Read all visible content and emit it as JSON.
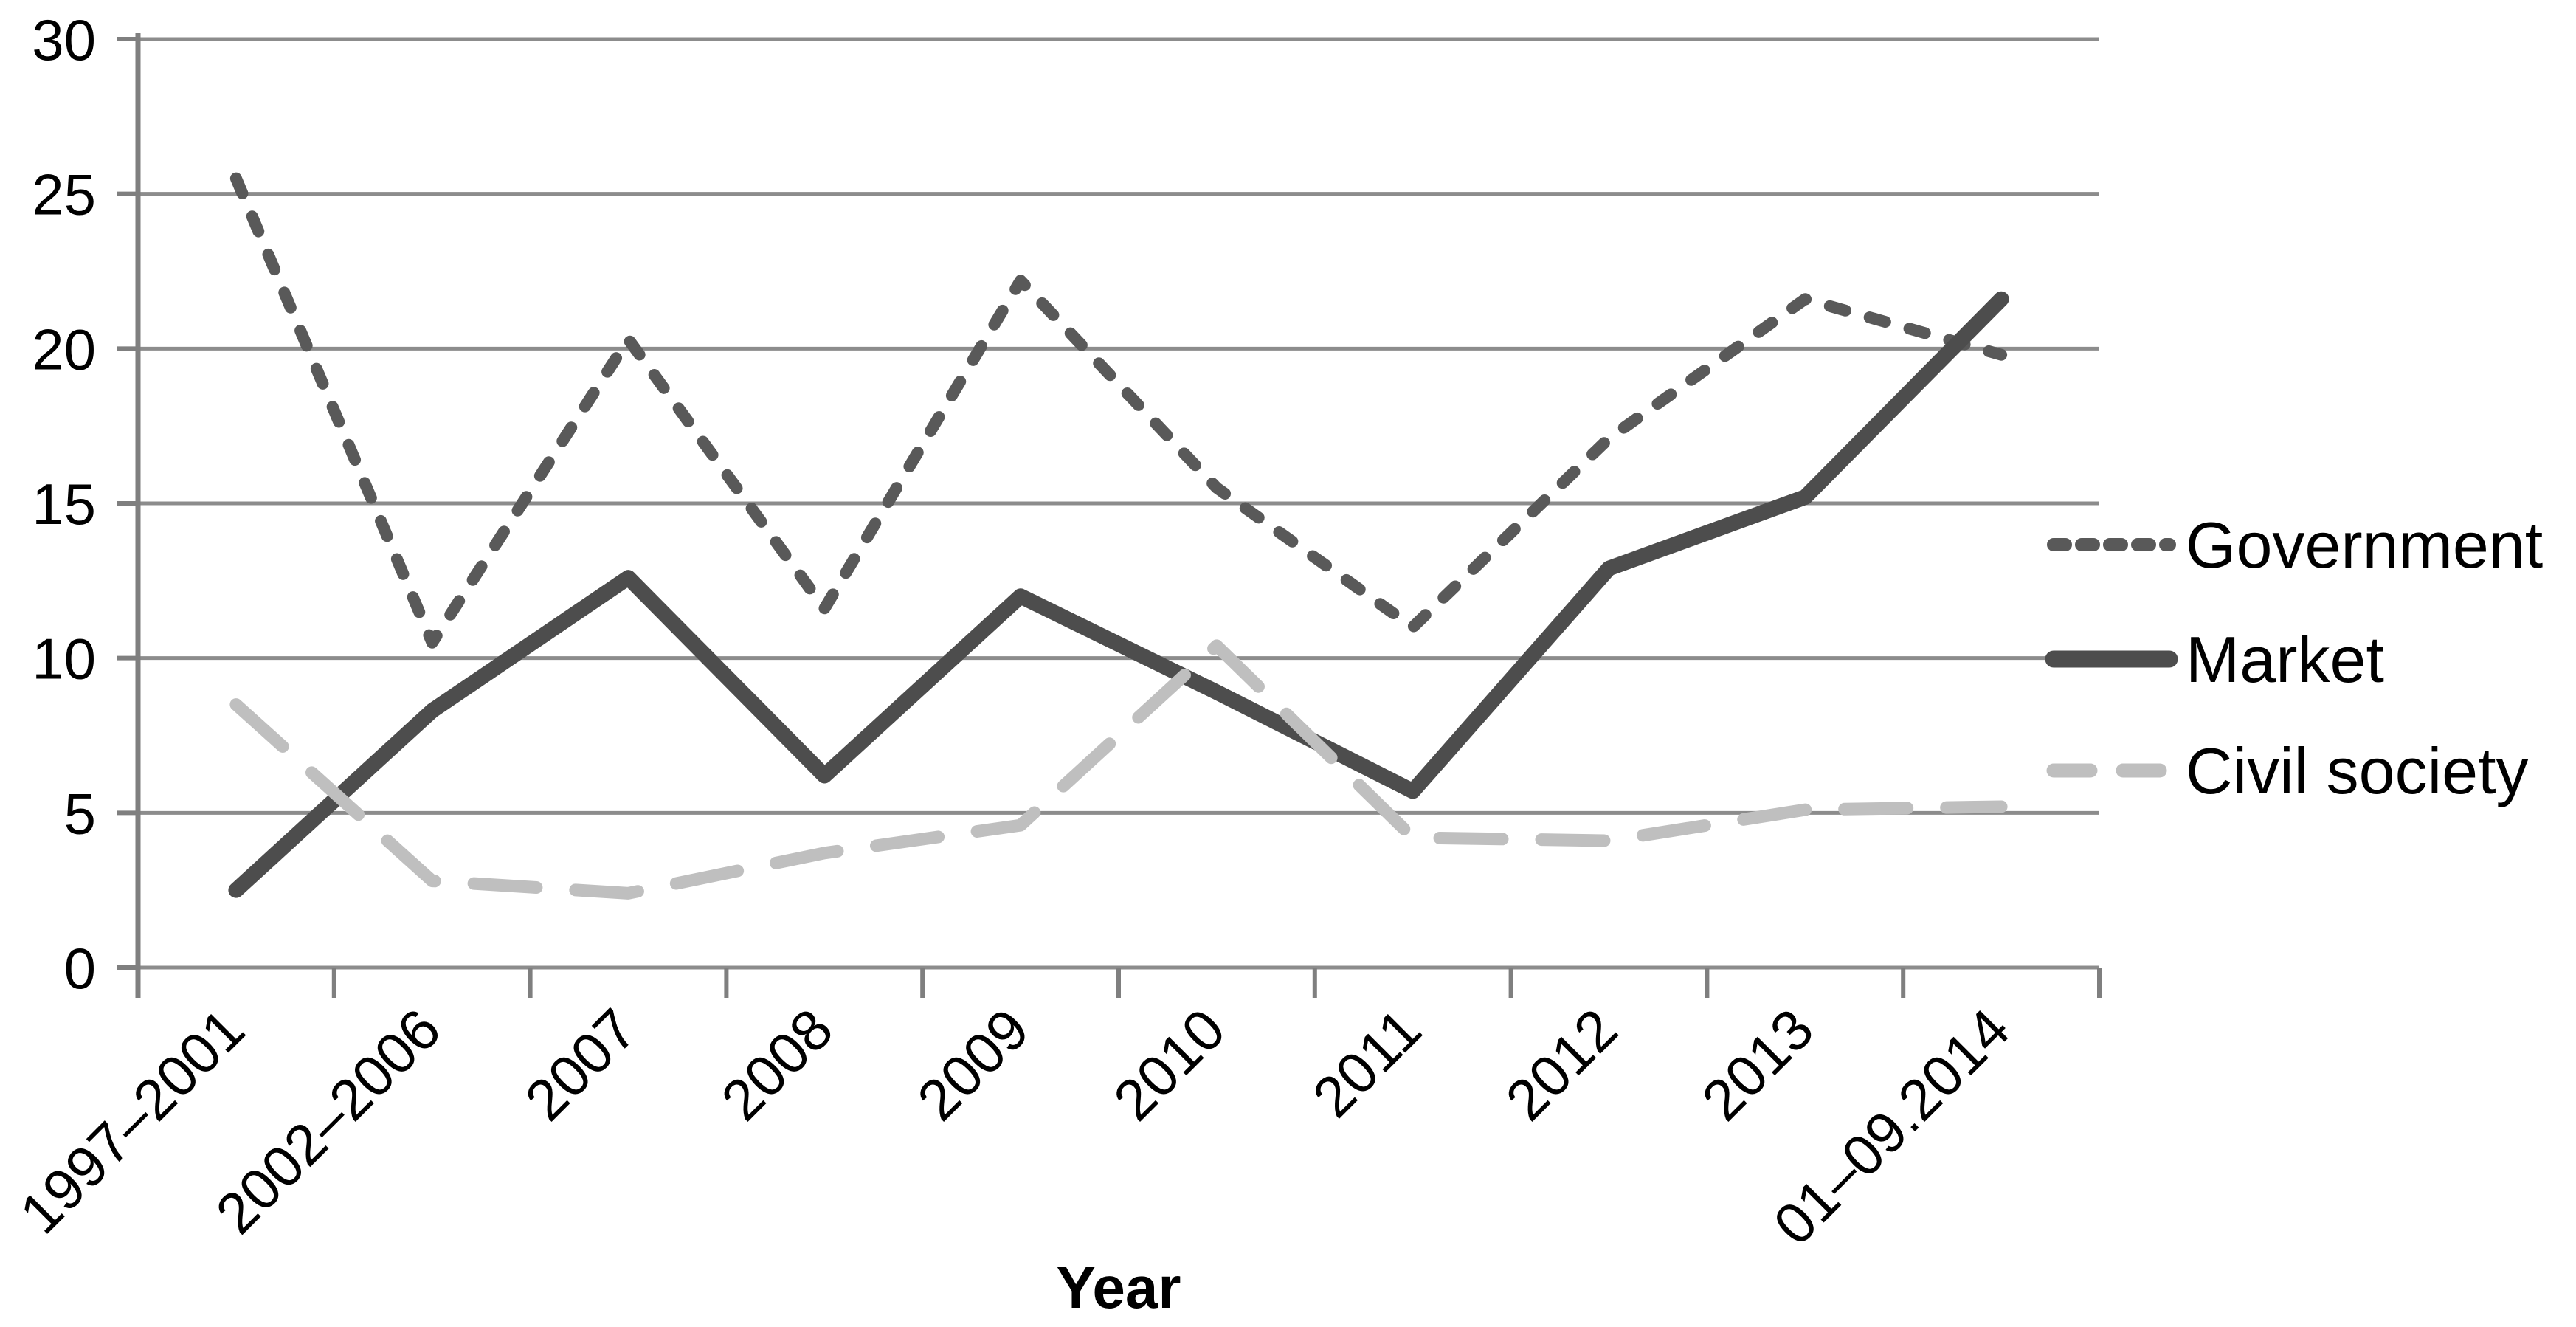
{
  "chart_data": {
    "type": "line",
    "title": "",
    "xlabel": "Year",
    "ylabel": "",
    "ylim": [
      0,
      30
    ],
    "yticks": [
      0,
      5,
      10,
      15,
      20,
      25,
      30
    ],
    "grid": true,
    "legend_position": "right",
    "categories": [
      "1997–2001",
      "2002–2006",
      "2007",
      "2008",
      "2009",
      "2010",
      "2011",
      "2012",
      "2013",
      "01–09.2014"
    ],
    "series": [
      {
        "name": "Government",
        "values": [
          25.5,
          10.5,
          20.3,
          11.6,
          22.2,
          15.5,
          11.0,
          17.1,
          21.6,
          19.8
        ],
        "color": "#595959",
        "style": "dash-short",
        "width": 16
      },
      {
        "name": "Market",
        "values": [
          2.5,
          8.3,
          12.6,
          6.2,
          12.0,
          8.9,
          5.7,
          12.9,
          15.2,
          21.6
        ],
        "color": "#4d4d4d",
        "style": "solid",
        "width": 21
      },
      {
        "name": "Civil society",
        "values": [
          8.5,
          2.8,
          2.4,
          3.7,
          4.6,
          10.4,
          4.2,
          4.1,
          5.1,
          5.2
        ],
        "color": "#bfbfbf",
        "style": "dash-long",
        "width": 17
      }
    ],
    "colors": {
      "gridline": "#8c8c8c",
      "axis": "#7f7f7f",
      "text": "#000000"
    }
  }
}
